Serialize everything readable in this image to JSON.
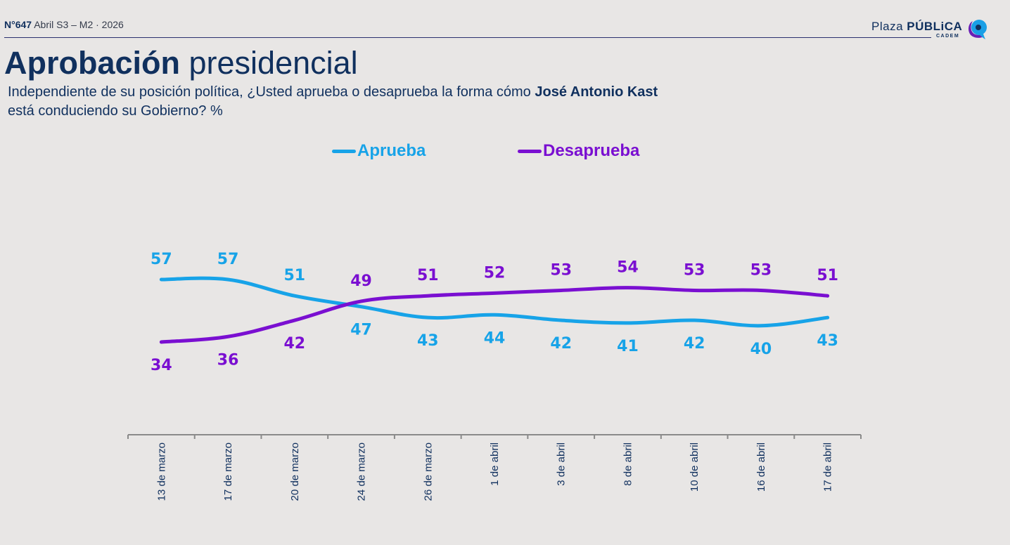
{
  "header": {
    "issue_number": "N°647",
    "issue_detail": "Abril S3 – M2 · 2026",
    "logo": {
      "light": "Plaza ",
      "bold": "PÚBLiCA",
      "sub": "CADEM",
      "icon": "speech-bubble-icon"
    }
  },
  "title": {
    "bold": "Aprobación",
    "rest": " presidencial"
  },
  "subtitle": {
    "part1": "Independiente de su posición política, ¿Usted aprueba o desaprueba la forma cómo ",
    "bold": "José Antonio Kast",
    "part2": "está conduciendo su Gobierno? %"
  },
  "colors": {
    "aprueba": "#17a3e8",
    "desaprueba": "#7a0fd1",
    "text": "#10305e",
    "axis": "#8a8a8a"
  },
  "chart_data": {
    "type": "line",
    "title": "Aprobación presidencial",
    "xlabel": "",
    "ylabel": "%",
    "categories": [
      "13 de marzo",
      "17 de marzo",
      "20 de marzo",
      "24 de marzo",
      "26 de marzo",
      "1 de abril",
      "3 de abril",
      "8 de abril",
      "10 de abril",
      "16 de abril",
      "17 de abril"
    ],
    "series": [
      {
        "name": "Aprueba",
        "color": "#17a3e8",
        "values": [
          57,
          57,
          51,
          47,
          43,
          44,
          42,
          41,
          42,
          40,
          43
        ],
        "label_position": [
          "above",
          "above",
          "above",
          "below",
          "below",
          "below",
          "below",
          "below",
          "below",
          "below",
          "below"
        ]
      },
      {
        "name": "Desaprueba",
        "color": "#7a0fd1",
        "values": [
          34,
          36,
          42,
          49,
          51,
          52,
          53,
          54,
          53,
          53,
          51
        ],
        "label_position": [
          "below",
          "below",
          "below",
          "above",
          "above",
          "above",
          "above",
          "above",
          "above",
          "above",
          "above"
        ]
      }
    ],
    "legend": "top-center",
    "grid": false,
    "y_axis_visible": false,
    "data_labels": true
  }
}
